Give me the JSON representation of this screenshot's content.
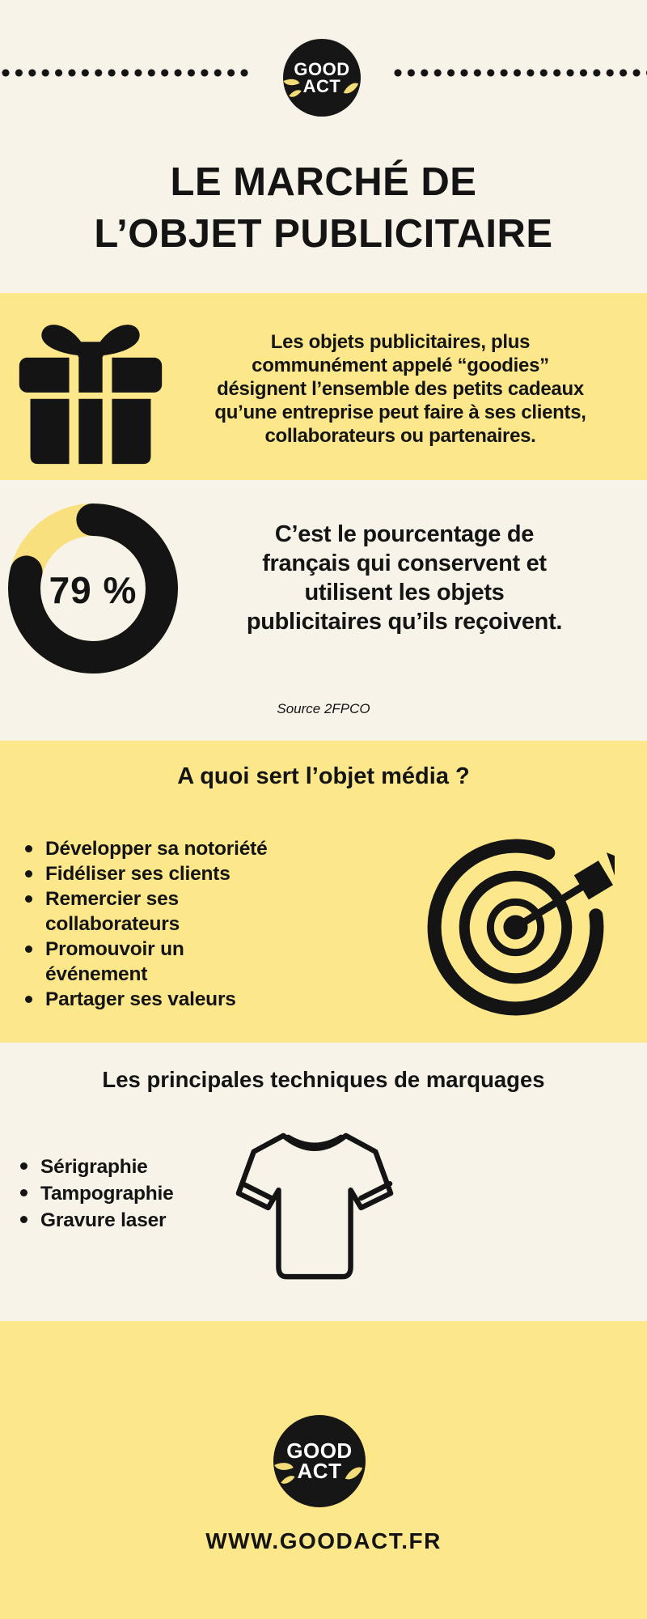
{
  "colors": {
    "yellow": "#FCE78A",
    "cream": "#F7F3E8",
    "ink": "#141414"
  },
  "header": {
    "logo": {
      "line1": "GOOD",
      "line2": "ACT"
    },
    "title": "LE MARCHÉ DE\nL’OBJET PUBLICITAIRE"
  },
  "intro": {
    "text": "Les objets publicitaires, plus\ncommunément appelé “goodies”\ndésignent l’ensemble des petits cadeaux\nqu’une entreprise peut faire à ses clients,\ncollaborateurs ou partenaires."
  },
  "stat": {
    "value": "79 %",
    "text": "C’est le pourcentage de\nfrançais qui conservent et\nutilisent les objets\npublicitaires qu’ils reçoivent.",
    "source": "Source 2FPCO"
  },
  "uses": {
    "heading": "A quoi sert l’objet média ?",
    "items": [
      "Développer sa notoriété",
      "Fidéliser ses clients",
      "Remercier ses\ncollaborateurs",
      "Promouvoir un\névénement",
      "Partager ses valeurs"
    ]
  },
  "techniques": {
    "heading": "Les principales techniques de marquages",
    "items": [
      "Sérigraphie",
      "Tampographie",
      "Gravure laser"
    ]
  },
  "footer": {
    "logo": {
      "line1": "GOOD",
      "line2": "ACT"
    },
    "url": "WWW.GOODACT.FR"
  },
  "chart_data": {
    "type": "pie",
    "values": [
      79,
      21
    ],
    "colors": [
      "#141414",
      "#F8E07E"
    ],
    "center_label": "79 %",
    "legend": "none"
  }
}
